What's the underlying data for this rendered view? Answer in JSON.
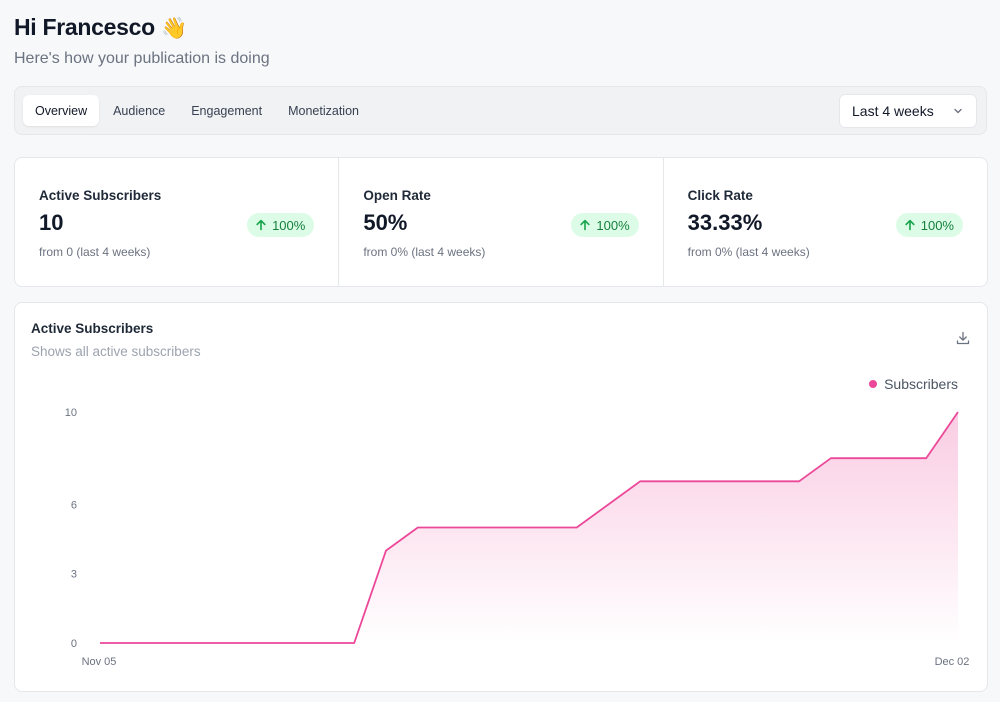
{
  "greeting": {
    "title": "Hi Francesco",
    "emoji": "👋",
    "subtitle": "Here's how your publication is doing"
  },
  "tabs": [
    {
      "label": "Overview",
      "active": true
    },
    {
      "label": "Audience",
      "active": false
    },
    {
      "label": "Engagement",
      "active": false
    },
    {
      "label": "Monetization",
      "active": false
    }
  ],
  "range_select": {
    "value": "Last 4 weeks"
  },
  "stats": [
    {
      "label": "Active Subscribers",
      "value": "10",
      "change": "100%",
      "from": "from 0 (last 4 weeks)"
    },
    {
      "label": "Open Rate",
      "value": "50%",
      "change": "100%",
      "from": "from 0% (last 4 weeks)"
    },
    {
      "label": "Click Rate",
      "value": "33.33%",
      "change": "100%",
      "from": "from 0% (last 4 weeks)"
    }
  ],
  "chart_card": {
    "title": "Active Subscribers",
    "subtitle": "Shows all active subscribers"
  },
  "colors": {
    "series": "#ec4899",
    "badge_bg": "#dcfce7",
    "badge_text": "#15803d"
  },
  "chart_data": {
    "type": "area",
    "title": "Active Subscribers",
    "legend": [
      "Subscribers"
    ],
    "legend_position": "top-right",
    "y_ticks": [
      0,
      3,
      6,
      10
    ],
    "ylim": [
      0,
      10
    ],
    "x_tick_labels": [
      "Nov 05",
      "Dec 02"
    ],
    "xlim": [
      0,
      27
    ],
    "series": [
      {
        "name": "Subscribers",
        "x": [
          0,
          8,
          9,
          10,
          15,
          17,
          22,
          23,
          26,
          27
        ],
        "values": [
          0,
          0,
          4,
          5,
          5,
          7,
          7,
          8,
          8,
          10
        ]
      }
    ]
  }
}
